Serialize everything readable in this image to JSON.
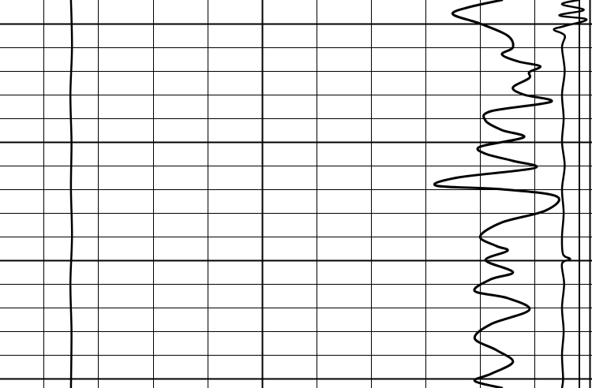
{
  "chart_data": {
    "type": "line",
    "title": "",
    "xlabel": "",
    "ylabel": "",
    "grid": true,
    "legend": "none",
    "line_color": "#000000",
    "background_color": "#ffffff",
    "x_gridlines": [
      0,
      1,
      2,
      3,
      4,
      5,
      6,
      7,
      8,
      9,
      10
    ],
    "x_major_gridlines": [
      4,
      10
    ],
    "y_gridlines": [
      1,
      2,
      3,
      4,
      5,
      6,
      7,
      8,
      9,
      10,
      11,
      12,
      13,
      14,
      15,
      16
    ],
    "y_major_gridlines": [
      1,
      6,
      11,
      16
    ],
    "xlim": [
      -0.8,
      10.05
    ],
    "ylim": [
      0,
      16.4
    ],
    "series": [
      {
        "values": [
          [
            0.5,
            0
          ],
          [
            0.52,
            2
          ],
          [
            0.49,
            4
          ],
          [
            0.51,
            6
          ],
          [
            0.5,
            8
          ],
          [
            0.52,
            10
          ],
          [
            0.49,
            12
          ],
          [
            0.51,
            14
          ],
          [
            0.5,
            16.4
          ]
        ]
      },
      {
        "values": [
          [
            8.4,
            0
          ],
          [
            7.8,
            0.3
          ],
          [
            7.5,
            0.6
          ],
          [
            8.0,
            1.0
          ],
          [
            8.5,
            1.5
          ],
          [
            8.6,
            2.0
          ],
          [
            8.4,
            2.3
          ],
          [
            8.7,
            2.6
          ],
          [
            9.1,
            2.8
          ],
          [
            8.9,
            3.05
          ],
          [
            8.9,
            3.3
          ],
          [
            8.6,
            3.7
          ],
          [
            8.8,
            4.0
          ],
          [
            9.3,
            4.3
          ],
          [
            8.2,
            4.7
          ],
          [
            8.1,
            5.1
          ],
          [
            8.4,
            5.5
          ],
          [
            8.8,
            5.8
          ],
          [
            8.0,
            6.2
          ],
          [
            8.1,
            6.5
          ],
          [
            8.6,
            6.8
          ],
          [
            9.0,
            7.1
          ],
          [
            7.6,
            7.5
          ],
          [
            7.2,
            7.85
          ],
          [
            8.4,
            8.0
          ],
          [
            9.4,
            8.3
          ],
          [
            9.2,
            8.9
          ],
          [
            8.4,
            9.4
          ],
          [
            8.0,
            10.0
          ],
          [
            8.3,
            10.4
          ],
          [
            8.5,
            10.6
          ],
          [
            8.1,
            11.0
          ],
          [
            8.6,
            11.5
          ],
          [
            8.2,
            11.8
          ],
          [
            7.9,
            12.3
          ],
          [
            8.5,
            12.6
          ],
          [
            8.9,
            13.1
          ],
          [
            8.2,
            13.7
          ],
          [
            7.9,
            14.3
          ],
          [
            8.3,
            14.8
          ],
          [
            8.6,
            15.3
          ],
          [
            8.2,
            15.8
          ],
          [
            7.9,
            16.1
          ],
          [
            8.4,
            16.4
          ]
        ]
      },
      {
        "values": [
          [
            9.8,
            0
          ],
          [
            9.5,
            0.18
          ],
          [
            9.9,
            0.42
          ],
          [
            9.45,
            0.65
          ],
          [
            9.95,
            0.82
          ],
          [
            9.55,
            1.1
          ],
          [
            9.35,
            1.25
          ],
          [
            9.55,
            1.5
          ],
          [
            9.5,
            2
          ],
          [
            9.55,
            3
          ],
          [
            9.5,
            4
          ],
          [
            9.53,
            5
          ],
          [
            9.5,
            6
          ],
          [
            9.55,
            7
          ],
          [
            9.5,
            8
          ],
          [
            9.53,
            9
          ],
          [
            9.5,
            10
          ],
          [
            9.52,
            10.75
          ],
          [
            9.65,
            10.95
          ],
          [
            9.5,
            11.15
          ],
          [
            9.54,
            12
          ],
          [
            9.5,
            13
          ],
          [
            9.53,
            14
          ],
          [
            9.5,
            15
          ],
          [
            9.52,
            16
          ],
          [
            9.5,
            16.4
          ]
        ]
      }
    ]
  }
}
